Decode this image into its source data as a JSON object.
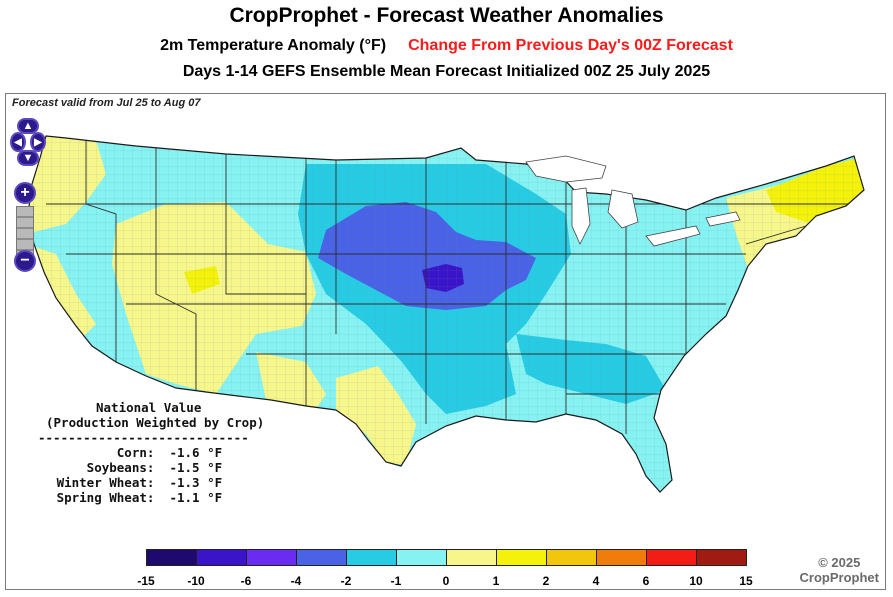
{
  "header": {
    "title": "CropProphet - Forecast Weather Anomalies",
    "subtitle_left": "2m Temperature Anomaly (°F)",
    "subtitle_right": "Change From Previous Day's 00Z Forecast",
    "subtitle_line3": "Days 1-14 GEFS Ensemble Mean Forecast Initialized 00Z 25 July 2025"
  },
  "map": {
    "valid_text": "Forecast valid from Jul 25 to Aug 07",
    "controls": {
      "zoom_in": "+",
      "zoom_out": "−"
    }
  },
  "national": {
    "heading": "National Value",
    "subheading": "(Production Weighted by Crop)",
    "divider": "----------------------------",
    "rows": [
      {
        "crop": "Corn:",
        "value": "-1.6 °F"
      },
      {
        "crop": "Soybeans:",
        "value": "-1.5 °F"
      },
      {
        "crop": "Winter Wheat:",
        "value": "-1.3 °F"
      },
      {
        "crop": "Spring Wheat:",
        "value": "-1.1 °F"
      }
    ]
  },
  "legend": {
    "ticks": [
      "-15",
      "-10",
      "-6",
      "-4",
      "-2",
      "-1",
      "0",
      "1",
      "2",
      "4",
      "6",
      "10",
      "15"
    ],
    "colors": [
      "#1e0a6e",
      "#3a14c8",
      "#6a2cf0",
      "#4a62e6",
      "#27cce4",
      "#86f2f2",
      "#f6f68a",
      "#f4f20a",
      "#f2c60c",
      "#f07c0c",
      "#f21e16",
      "#a01c12"
    ]
  },
  "copyright": {
    "line1": "© 2025",
    "line2": "CropProphet"
  }
}
